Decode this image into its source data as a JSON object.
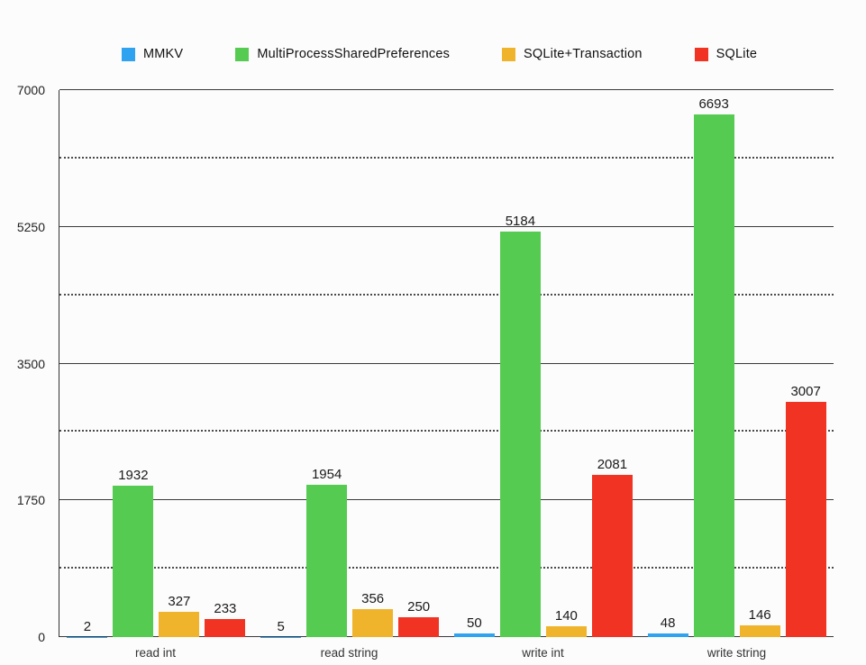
{
  "chart_data": {
    "type": "bar",
    "title": "",
    "categories": [
      "read int",
      "read string",
      "write int",
      "write string"
    ],
    "series": [
      {
        "name": "MMKV",
        "color": "#2fa2f0",
        "values": [
          2,
          5,
          50,
          48
        ]
      },
      {
        "name": "MultiProcessSharedPreferences",
        "color": "#55cc51",
        "values": [
          1932,
          1954,
          5184,
          6693
        ]
      },
      {
        "name": "SQLite+Transaction",
        "color": "#efb42c",
        "values": [
          327,
          356,
          140,
          146
        ]
      },
      {
        "name": "SQLite",
        "color": "#f03322",
        "values": [
          233,
          250,
          2081,
          3007
        ]
      }
    ],
    "ylim": [
      0,
      7000
    ],
    "yticks": [
      0,
      1750,
      3500,
      5250,
      7000
    ],
    "minor_gridlines": [
      875,
      2625,
      4375,
      6125
    ],
    "legend_position": "top",
    "grid": true
  }
}
